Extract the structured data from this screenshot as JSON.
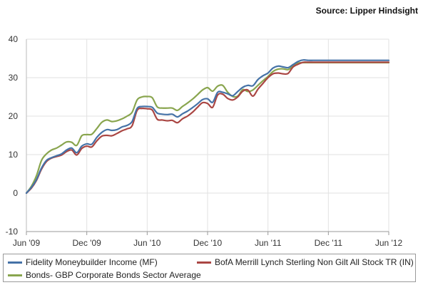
{
  "source": "Source: Lipper Hindsight",
  "chart_data": {
    "type": "line",
    "title": "",
    "xlabel": "",
    "ylabel": "",
    "ylim": [
      -10,
      40
    ],
    "yticks": [
      -10,
      0,
      10,
      20,
      30,
      40
    ],
    "grid": true,
    "legend_position": "bottom",
    "x_tick_labels": [
      "Jun '09",
      "Dec '09",
      "Jun '10",
      "Dec '10",
      "Jun '11",
      "Dec '11",
      "Jun '12"
    ],
    "x_months": [
      0,
      0.5,
      1,
      1.5,
      2,
      2.5,
      3,
      3.5,
      4,
      4.5,
      5,
      5.5,
      6,
      6.5,
      7,
      7.5,
      8,
      8.5,
      9,
      9.5,
      10,
      10.5,
      11,
      11.5,
      12,
      12.5,
      13,
      13.5,
      14,
      14.5,
      15,
      15.5,
      16,
      16.5,
      17,
      17.5,
      18,
      18.5,
      19,
      19.5,
      20,
      20.5,
      21,
      21.5,
      22,
      22.5,
      23,
      23.5,
      24,
      24.5,
      25,
      25.5,
      26,
      26.5,
      27,
      27.5,
      28,
      28.5,
      29,
      29.5,
      30,
      30.5,
      31,
      31.5,
      32,
      32.5,
      33,
      33.5,
      34,
      34.5,
      35,
      35.5,
      36
    ],
    "series": [
      {
        "name": "Fidelity Moneybuilder Income (MF)",
        "color": "#4572a7",
        "values": [
          0,
          1.5,
          3.5,
          6.5,
          8.5,
          9.2,
          9.7,
          10.2,
          11.2,
          11.7,
          10.5,
          12.2,
          12.8,
          12.7,
          14.5,
          15.8,
          16.5,
          16.3,
          16.5,
          17.2,
          17.6,
          18.6,
          22,
          22.5,
          22.5,
          22.3,
          20.8,
          20.5,
          20.4,
          20.5,
          19.8,
          20.6,
          21.3,
          22.2,
          23.2,
          24.3,
          24.5,
          23.6,
          26.2,
          26.2,
          25.8,
          25.3,
          26.4,
          27.5,
          28,
          27.9,
          29.5,
          30.5,
          31.2,
          32.5,
          33,
          32.8,
          32.6,
          33.4,
          34.2,
          34.6,
          34.5,
          34.5,
          34.5,
          34.5,
          34.5,
          34.5,
          34.5,
          34.5,
          34.5,
          34.5,
          34.5,
          34.5,
          34.5,
          34.5,
          34.5,
          34.5,
          34.5
        ]
      },
      {
        "name": "BofA Merrill Lynch Sterling Non Gilt All Stock TR (IN)",
        "color": "#aa4643",
        "values": [
          0,
          1.3,
          3.3,
          6.2,
          8.2,
          9.1,
          9.5,
          9.9,
          10.8,
          11.2,
          9.9,
          11.6,
          12.2,
          12,
          13.6,
          14.8,
          15,
          14.9,
          15.5,
          16.2,
          16.7,
          17.5,
          21.5,
          22,
          21.9,
          21.6,
          19.2,
          19,
          18.8,
          18.9,
          18.3,
          19.3,
          20,
          21,
          22.3,
          23.5,
          23.3,
          22.3,
          25.5,
          25.7,
          24.6,
          24.2,
          25,
          26.5,
          26.8,
          25.2,
          27,
          28.5,
          30,
          31,
          31.2,
          31,
          31.1,
          32.8,
          33.5,
          34,
          34,
          34,
          34,
          34,
          34,
          34,
          34,
          34,
          34,
          34,
          34,
          34,
          34,
          34,
          34,
          34,
          34
        ]
      },
      {
        "name": "Bonds- GBP Corporate Bonds Sector Average",
        "color": "#89a54e",
        "values": [
          0,
          1.8,
          4.5,
          8.5,
          10.2,
          11.2,
          11.7,
          12.5,
          13.3,
          13.2,
          12.4,
          14.9,
          15.2,
          15.3,
          16.8,
          18.4,
          19,
          18.6,
          18.8,
          19.3,
          20,
          21,
          24.2,
          25,
          25.1,
          24.8,
          22.4,
          22.1,
          22.1,
          22.1,
          21.5,
          22.5,
          23.4,
          24.4,
          25.6,
          26.8,
          27.4,
          26.5,
          27.8,
          28,
          26.2,
          25.1,
          25.2,
          26.9,
          26.4,
          26.8,
          28,
          29.2,
          30.3,
          31.6,
          32.2,
          32.3,
          32.1,
          33,
          33.8,
          33.9,
          33.9,
          33.9,
          33.9,
          33.9,
          33.9,
          33.9,
          33.9,
          33.9,
          33.9,
          33.9,
          33.9,
          33.9,
          33.9,
          33.9,
          33.9,
          33.9,
          33.9
        ]
      }
    ]
  }
}
